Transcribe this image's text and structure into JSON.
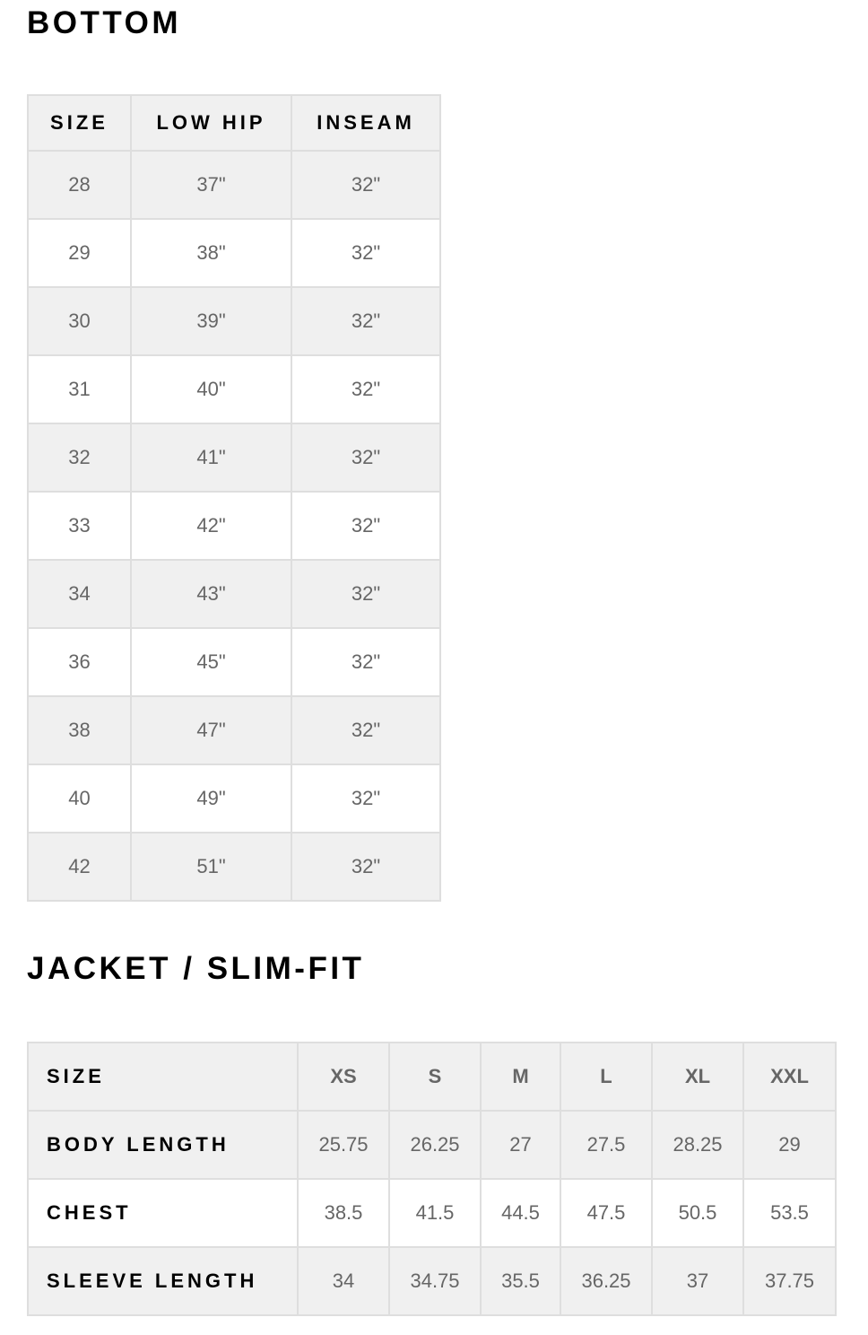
{
  "bottom": {
    "title": "BOTTOM",
    "headers": [
      "SIZE",
      "LOW HIP",
      "INSEAM"
    ],
    "rows": [
      [
        "28",
        "37\"",
        "32\""
      ],
      [
        "29",
        "38\"",
        "32\""
      ],
      [
        "30",
        "39\"",
        "32\""
      ],
      [
        "31",
        "40\"",
        "32\""
      ],
      [
        "32",
        "41\"",
        "32\""
      ],
      [
        "33",
        "42\"",
        "32\""
      ],
      [
        "34",
        "43\"",
        "32\""
      ],
      [
        "36",
        "45\"",
        "32\""
      ],
      [
        "38",
        "47\"",
        "32\""
      ],
      [
        "40",
        "49\"",
        "32\""
      ],
      [
        "42",
        "51\"",
        "32\""
      ]
    ]
  },
  "jacket": {
    "title": "JACKET / SLIM-FIT",
    "header_label": "SIZE",
    "sizes": [
      "XS",
      "S",
      "M",
      "L",
      "XL",
      "XXL"
    ],
    "rows": [
      {
        "label": "BODY LENGTH",
        "values": [
          "25.75",
          "26.25",
          "27",
          "27.5",
          "28.25",
          "29"
        ]
      },
      {
        "label": "CHEST",
        "values": [
          "38.5",
          "41.5",
          "44.5",
          "47.5",
          "50.5",
          "53.5"
        ]
      },
      {
        "label": "SLEEVE LENGTH",
        "values": [
          "34",
          "34.75",
          "35.5",
          "36.25",
          "37",
          "37.75"
        ]
      }
    ]
  },
  "colors": {
    "row_gray": "#f0f0f0",
    "border": "#dedede",
    "value_text": "#666666",
    "header_text": "#000000"
  }
}
